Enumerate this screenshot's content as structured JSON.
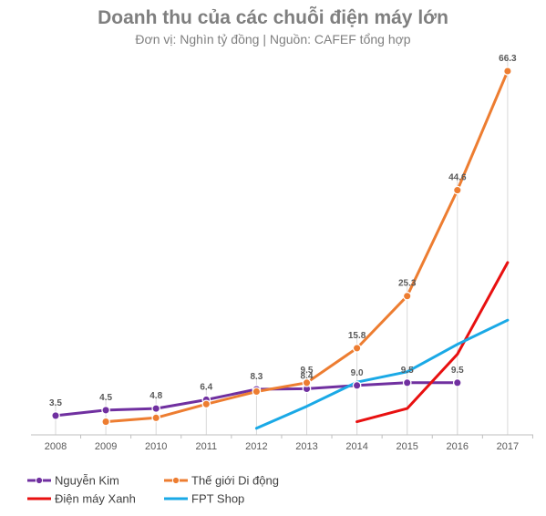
{
  "chart_data": {
    "type": "line",
    "title": "Doanh thu của các chuỗi điện máy lớn",
    "subtitle": "Đơn vị: Nghìn tỷ đồng | Nguồn: CAFEF tổng hợp",
    "xlabel": "",
    "ylabel": "",
    "x": [
      "2008",
      "2009",
      "2010",
      "2011",
      "2012",
      "2013",
      "2014",
      "2015",
      "2016",
      "2017"
    ],
    "ylim": [
      0,
      70
    ],
    "grid": "vertical-dropdown-lines",
    "legend_position": "bottom-left",
    "series": [
      {
        "name": "Nguyễn Kim",
        "color": "#7030a0",
        "markers": true,
        "values": [
          3.5,
          4.5,
          4.8,
          6.4,
          8.3,
          8.4,
          9.0,
          9.5,
          9.5,
          null
        ],
        "labels": [
          "3.5",
          "4.5",
          "4.8",
          "6.4",
          "8.3",
          "8.4",
          "9.0",
          "9.5",
          "9.5",
          null
        ]
      },
      {
        "name": "Thế giới Di động",
        "color": "#ed7d31",
        "markers": true,
        "values": [
          null,
          2.4,
          3.1,
          5.6,
          7.9,
          9.5,
          15.8,
          25.3,
          44.6,
          66.3
        ],
        "labels": [
          null,
          null,
          null,
          null,
          null,
          "9.5",
          "15.8",
          "25.3",
          "44.6",
          "66.3"
        ]
      },
      {
        "name": "Điện máy Xanh",
        "color": "#e81010",
        "markers": false,
        "values": [
          null,
          null,
          null,
          null,
          null,
          null,
          2.4,
          4.8,
          14.7,
          31.4
        ],
        "labels": [
          null,
          null,
          null,
          null,
          null,
          null,
          null,
          null,
          null,
          null
        ]
      },
      {
        "name": "FPT Shop",
        "color": "#1aa9e6",
        "markers": false,
        "values": [
          null,
          null,
          null,
          null,
          1.2,
          5.2,
          9.6,
          11.5,
          16.5,
          20.9
        ],
        "labels": [
          null,
          null,
          null,
          null,
          null,
          null,
          null,
          null,
          null,
          null
        ]
      }
    ]
  }
}
